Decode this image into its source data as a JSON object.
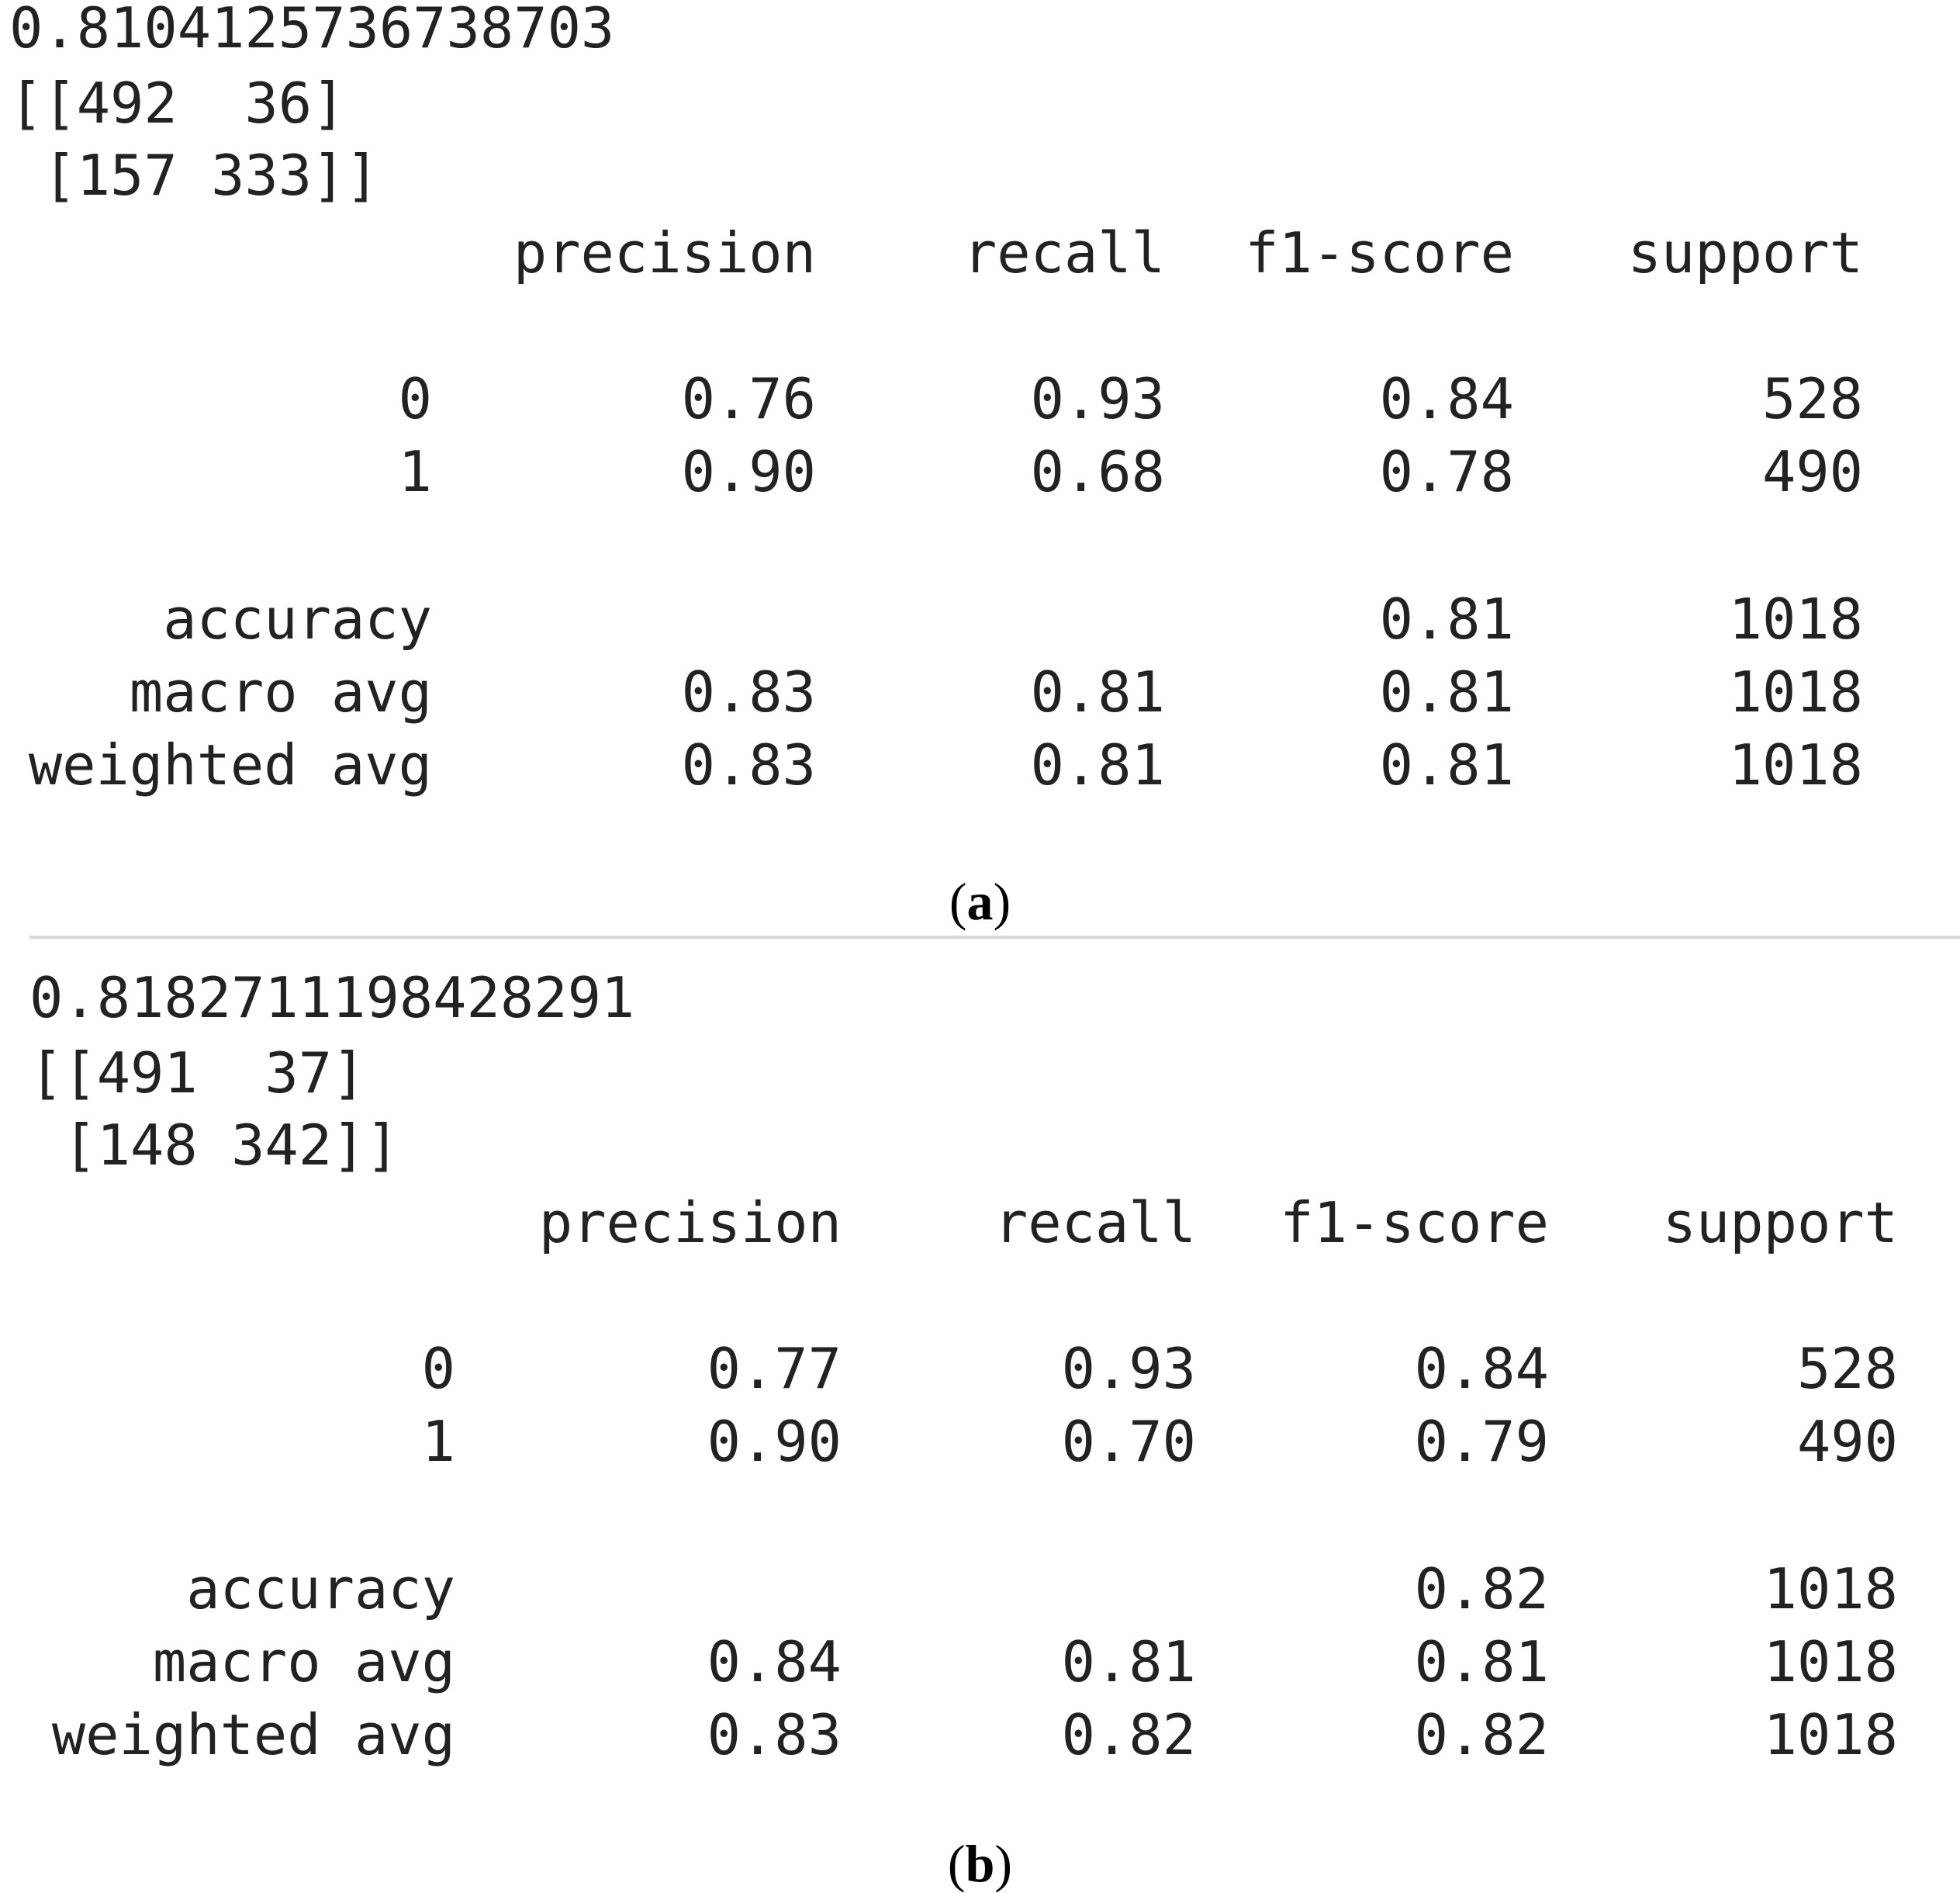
{
  "panels": [
    {
      "accuracy_value": "0.8104125736738703",
      "matrix_row1": "[[492  36]",
      "matrix_row2": " [157 333]]",
      "headers": [
        "precision",
        "recall",
        "f1-score",
        "support"
      ],
      "rows": [
        {
          "label": "0",
          "precision": "0.76",
          "recall": "0.93",
          "f1": "0.84",
          "support": "528"
        },
        {
          "label": "1",
          "precision": "0.90",
          "recall": "0.68",
          "f1": "0.78",
          "support": "490"
        },
        {
          "label": "accuracy",
          "precision": "",
          "recall": "",
          "f1": "0.81",
          "support": "1018"
        },
        {
          "label": "macro avg",
          "precision": "0.83",
          "recall": "0.81",
          "f1": "0.81",
          "support": "1018"
        },
        {
          "label": "weighted avg",
          "precision": "0.83",
          "recall": "0.81",
          "f1": "0.81",
          "support": "1018"
        }
      ],
      "caption_open": "(",
      "caption_letter": "a",
      "caption_close": ")"
    },
    {
      "accuracy_value": "0.8182711198428291",
      "matrix_row1": "[[491  37]",
      "matrix_row2": " [148 342]]",
      "headers": [
        "precision",
        "recall",
        "f1-score",
        "support"
      ],
      "rows": [
        {
          "label": "0",
          "precision": "0.77",
          "recall": "0.93",
          "f1": "0.84",
          "support": "528"
        },
        {
          "label": "1",
          "precision": "0.90",
          "recall": "0.70",
          "f1": "0.79",
          "support": "490"
        },
        {
          "label": "accuracy",
          "precision": "",
          "recall": "",
          "f1": "0.82",
          "support": "1018"
        },
        {
          "label": "macro avg",
          "precision": "0.84",
          "recall": "0.81",
          "f1": "0.81",
          "support": "1018"
        },
        {
          "label": "weighted avg",
          "precision": "0.83",
          "recall": "0.82",
          "f1": "0.82",
          "support": "1018"
        }
      ],
      "caption_open": "(",
      "caption_letter": "b",
      "caption_close": ")"
    }
  ]
}
